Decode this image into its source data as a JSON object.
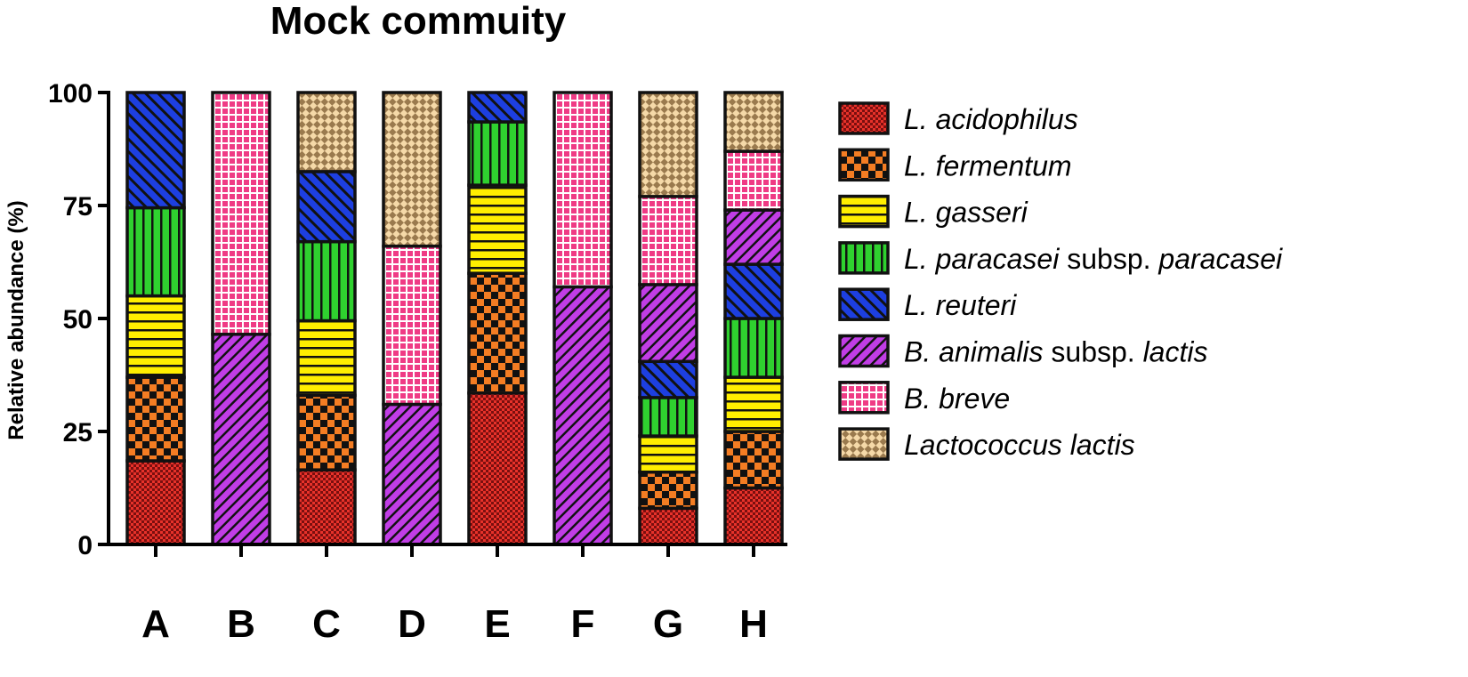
{
  "chart_data": {
    "type": "bar",
    "stacked": true,
    "title": "Mock commuity",
    "ylabel": "Relative abundance (%)",
    "xlabel": "",
    "ylim": [
      0,
      100
    ],
    "yticks": [
      0,
      25,
      50,
      75,
      100
    ],
    "categories": [
      "A",
      "B",
      "C",
      "D",
      "E",
      "F",
      "G",
      "H"
    ],
    "grid": false,
    "legend_position": "right",
    "series": [
      {
        "name": "L. acidophilus",
        "legend_parts": [
          {
            "text": "L. acidophilus",
            "italic": true
          }
        ],
        "color": "#e8322a",
        "pattern": "checker-fine",
        "values": [
          18.5,
          0,
          16.5,
          0,
          33.5,
          0,
          8,
          12.5
        ]
      },
      {
        "name": "L. fermentum",
        "legend_parts": [
          {
            "text": "L. fermentum",
            "italic": true
          }
        ],
        "color": "#f47d23",
        "pattern": "checker",
        "values": [
          18.5,
          0,
          16.5,
          0,
          26.5,
          0,
          8,
          12.5
        ]
      },
      {
        "name": "L. gasseri",
        "legend_parts": [
          {
            "text": "L. gasseri",
            "italic": true
          }
        ],
        "color": "#ffee00",
        "pattern": "hlines",
        "values": [
          18,
          0,
          16.5,
          0,
          19.5,
          0,
          8,
          12
        ]
      },
      {
        "name": "L. paracasei subsp. paracasei",
        "legend_parts": [
          {
            "text": "L. paracasei",
            "italic": true
          },
          {
            "text": " subsp. ",
            "italic": false
          },
          {
            "text": "paracasei",
            "italic": true
          }
        ],
        "color": "#2fd12f",
        "pattern": "vlines",
        "values": [
          19.5,
          0,
          17.5,
          0,
          14,
          0,
          8.5,
          13
        ]
      },
      {
        "name": "L. reuteri",
        "legend_parts": [
          {
            "text": "L. reuteri",
            "italic": true
          }
        ],
        "color": "#1d3fe0",
        "pattern": "diag-up",
        "values": [
          25.5,
          0,
          15.5,
          0,
          6.5,
          0,
          8,
          12
        ]
      },
      {
        "name": "B. animalis subsp. lactis",
        "legend_parts": [
          {
            "text": "B. animalis",
            "italic": true
          },
          {
            "text": " subsp. ",
            "italic": false
          },
          {
            "text": "lactis",
            "italic": true
          }
        ],
        "color": "#c13de6",
        "pattern": "diag-down",
        "values": [
          0,
          46.5,
          0,
          31,
          0,
          57,
          17,
          12
        ]
      },
      {
        "name": "B. breve",
        "legend_parts": [
          {
            "text": "B. breve",
            "italic": true
          }
        ],
        "color": "#ef3b85",
        "pattern": "grid",
        "values": [
          0,
          53.5,
          0,
          35,
          0,
          43,
          19.5,
          13
        ]
      },
      {
        "name": "Lactococcus lactis",
        "legend_parts": [
          {
            "text": "Lactococcus lactis",
            "italic": true
          }
        ],
        "color": "#f5d9a8",
        "pattern": "checker-diag",
        "values": [
          0,
          0,
          17.5,
          34,
          0,
          0,
          23,
          13
        ]
      }
    ]
  }
}
